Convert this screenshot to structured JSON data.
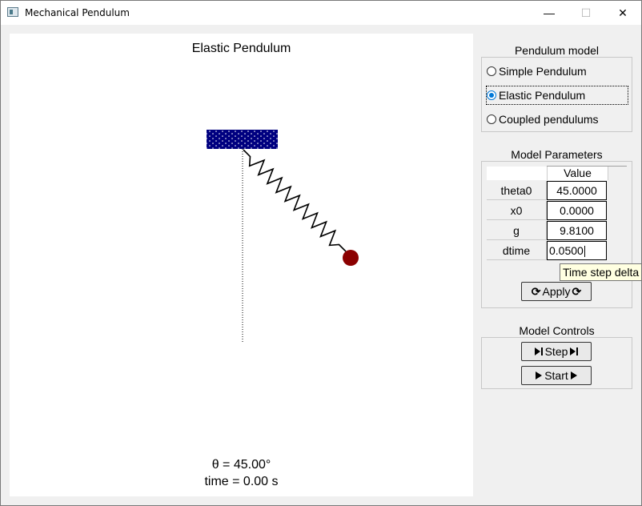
{
  "window": {
    "title": "Mechanical Pendulum",
    "minimize_glyph": "—",
    "maximize_glyph": "☐",
    "close_glyph": "✕"
  },
  "canvas": {
    "title": "Elastic Pendulum",
    "theta_readout": "θ = 45.00°",
    "time_readout": "time = 0.00 s",
    "colors": {
      "support": "#000080",
      "bob": "#8b0000",
      "spring": "#000000"
    }
  },
  "model_group": {
    "title": "Pendulum model",
    "options": [
      {
        "label": "Simple Pendulum",
        "checked": false
      },
      {
        "label": "Elastic Pendulum",
        "checked": true
      },
      {
        "label": "Coupled pendulums",
        "checked": false
      }
    ]
  },
  "params_group": {
    "title": "Model Parameters",
    "column_header": "Value",
    "rows": [
      {
        "name": "theta0",
        "value": "45.0000"
      },
      {
        "name": "x0",
        "value": "0.0000"
      },
      {
        "name": "g",
        "value": "9.8100"
      },
      {
        "name": "dtime",
        "value": "0.0500"
      }
    ],
    "tooltip": "Time step delta",
    "apply_label": "Apply",
    "apply_icon": "refresh-icon"
  },
  "controls_group": {
    "title": "Model Controls",
    "step_label": "Step",
    "step_icon": "step-forward-icon",
    "start_label": "Start",
    "start_icon": "play-icon"
  },
  "accent_color": "#0078d7"
}
